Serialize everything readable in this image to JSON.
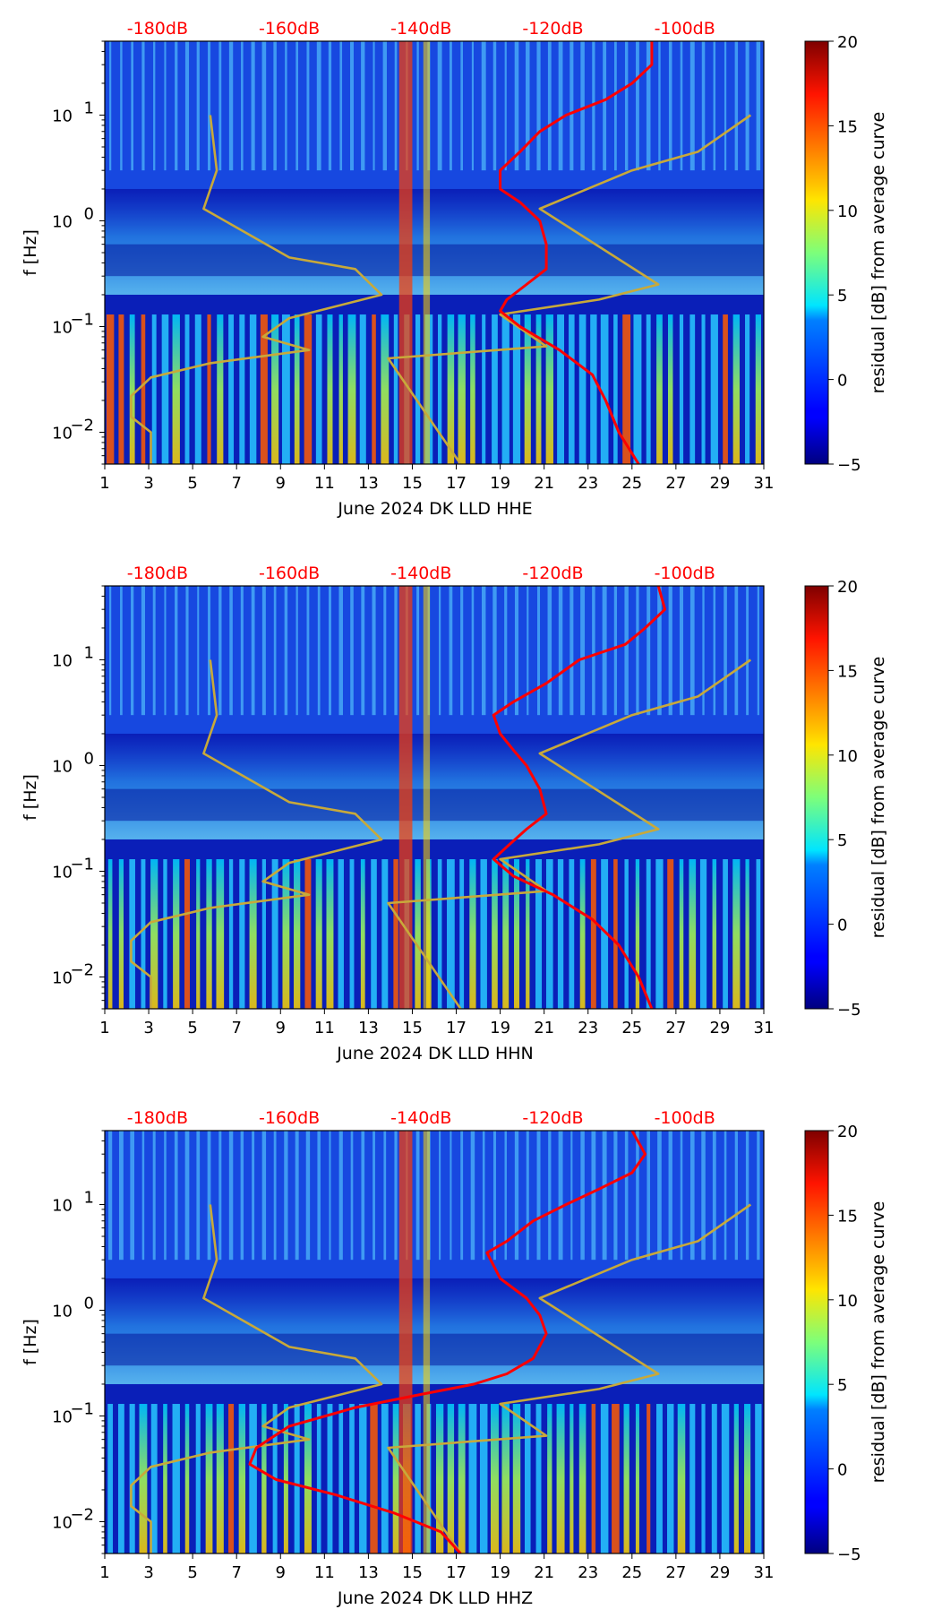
{
  "chart_data": [
    {
      "type": "heatmap",
      "xlabel": "June 2024 DK LLD  HHE",
      "ylabel": "f [Hz]",
      "x_ticks": [
        "1",
        "3",
        "5",
        "7",
        "9",
        "11",
        "13",
        "15",
        "17",
        "19",
        "21",
        "23",
        "25",
        "27",
        "29",
        "31"
      ],
      "y_ticks": [
        {
          "label_base": "10",
          "label_exp": "−2",
          "value": 0.01
        },
        {
          "label_base": "10",
          "label_exp": "−1",
          "value": 0.1
        },
        {
          "label_base": "10",
          "label_exp": "0",
          "value": 1
        },
        {
          "label_base": "10",
          "label_exp": "1",
          "value": 10
        }
      ],
      "xlim": [
        1,
        31
      ],
      "ylim": [
        0.005,
        50
      ],
      "db_scale_labels": [
        {
          "label": "-180dB",
          "db": -180
        },
        {
          "label": "-160dB",
          "db": -160
        },
        {
          "label": "-140dB",
          "db": -140
        },
        {
          "label": "-120dB",
          "db": -120
        },
        {
          "label": "-100dB",
          "db": -100
        }
      ],
      "db_range": [
        -188,
        -88
      ],
      "colorbar": {
        "label": "residual [dB] from average curve",
        "ticks": [
          "−5",
          "0",
          "5",
          "10",
          "15",
          "20"
        ],
        "tick_values": [
          -5,
          0,
          5,
          10,
          15,
          20
        ],
        "range": [
          -5,
          20
        ]
      },
      "series": [
        {
          "name": "model-curve",
          "color": "#c8a93a",
          "points": [
            [
              -172,
              10
            ],
            [
              -171,
              3
            ],
            [
              -173,
              1.3
            ],
            [
              -160,
              0.45
            ],
            [
              -150,
              0.35
            ],
            [
              -146,
              0.2
            ],
            [
              -160,
              0.12
            ],
            [
              -164,
              0.08
            ],
            [
              -157,
              0.06
            ],
            [
              -172,
              0.045
            ],
            [
              -181,
              0.033
            ],
            [
              -184,
              0.022
            ],
            [
              -184,
              0.014
            ],
            [
              -181,
              0.01
            ],
            [
              -181,
              0.005
            ]
          ]
        },
        {
          "name": "model-curve-2",
          "color": "#c8a93a",
          "points": [
            [
              -90,
              10
            ],
            [
              -98,
              4.5
            ],
            [
              -108,
              3.0
            ],
            [
              -122,
              1.3
            ],
            [
              -104,
              0.25
            ],
            [
              -113,
              0.18
            ],
            [
              -128,
              0.13
            ],
            [
              -121,
              0.065
            ],
            [
              -145,
              0.05
            ],
            [
              -134,
              0.005
            ]
          ]
        },
        {
          "name": "mean-spectrum",
          "color": "#ff0000",
          "points": [
            [
              -105,
              50
            ],
            [
              -105,
              30
            ],
            [
              -108,
              20
            ],
            [
              -112,
              14
            ],
            [
              -118,
              10
            ],
            [
              -122,
              7
            ],
            [
              -125,
              4.5
            ],
            [
              -128,
              3
            ],
            [
              -128,
              2
            ],
            [
              -125,
              1.5
            ],
            [
              -122,
              1.0
            ],
            [
              -121,
              0.6
            ],
            [
              -121,
              0.35
            ],
            [
              -124,
              0.25
            ],
            [
              -127,
              0.18
            ],
            [
              -128,
              0.14
            ],
            [
              -125,
              0.1
            ],
            [
              -119,
              0.06
            ],
            [
              -114,
              0.035
            ],
            [
              -112,
              0.02
            ],
            [
              -110,
              0.01
            ],
            [
              -107,
              0.005
            ]
          ]
        }
      ]
    },
    {
      "type": "heatmap",
      "xlabel": "June 2024 DK LLD  HHN",
      "ylabel": "f [Hz]",
      "x_ticks": [
        "1",
        "3",
        "5",
        "7",
        "9",
        "11",
        "13",
        "15",
        "17",
        "19",
        "21",
        "23",
        "25",
        "27",
        "29",
        "31"
      ],
      "y_ticks": [
        {
          "label_base": "10",
          "label_exp": "−2",
          "value": 0.01
        },
        {
          "label_base": "10",
          "label_exp": "−1",
          "value": 0.1
        },
        {
          "label_base": "10",
          "label_exp": "0",
          "value": 1
        },
        {
          "label_base": "10",
          "label_exp": "1",
          "value": 10
        }
      ],
      "xlim": [
        1,
        31
      ],
      "ylim": [
        0.005,
        50
      ],
      "db_scale_labels": [
        {
          "label": "-180dB",
          "db": -180
        },
        {
          "label": "-160dB",
          "db": -160
        },
        {
          "label": "-140dB",
          "db": -140
        },
        {
          "label": "-120dB",
          "db": -120
        },
        {
          "label": "-100dB",
          "db": -100
        }
      ],
      "db_range": [
        -188,
        -88
      ],
      "colorbar": {
        "label": "residual [dB] from average curve",
        "ticks": [
          "−5",
          "0",
          "5",
          "10",
          "15",
          "20"
        ],
        "tick_values": [
          -5,
          0,
          5,
          10,
          15,
          20
        ],
        "range": [
          -5,
          20
        ]
      },
      "series": [
        {
          "name": "model-curve",
          "color": "#c8a93a",
          "points": [
            [
              -172,
              10
            ],
            [
              -171,
              3
            ],
            [
              -173,
              1.3
            ],
            [
              -160,
              0.45
            ],
            [
              -150,
              0.35
            ],
            [
              -146,
              0.2
            ],
            [
              -160,
              0.12
            ],
            [
              -164,
              0.08
            ],
            [
              -157,
              0.06
            ],
            [
              -172,
              0.045
            ],
            [
              -181,
              0.033
            ],
            [
              -184,
              0.022
            ],
            [
              -184,
              0.014
            ],
            [
              -181,
              0.01
            ],
            [
              -181,
              0.005
            ]
          ]
        },
        {
          "name": "model-curve-2",
          "color": "#c8a93a",
          "points": [
            [
              -90,
              10
            ],
            [
              -98,
              4.5
            ],
            [
              -108,
              3.0
            ],
            [
              -122,
              1.3
            ],
            [
              -104,
              0.25
            ],
            [
              -113,
              0.18
            ],
            [
              -128,
              0.13
            ],
            [
              -121,
              0.065
            ],
            [
              -145,
              0.05
            ],
            [
              -134,
              0.005
            ]
          ]
        },
        {
          "name": "mean-spectrum",
          "color": "#ff0000",
          "points": [
            [
              -104,
              50
            ],
            [
              -103,
              30
            ],
            [
              -106,
              20
            ],
            [
              -109,
              14
            ],
            [
              -116,
              10
            ],
            [
              -121,
              6
            ],
            [
              -126,
              4
            ],
            [
              -129,
              3
            ],
            [
              -128,
              2
            ],
            [
              -126,
              1.4
            ],
            [
              -124,
              1.0
            ],
            [
              -122,
              0.6
            ],
            [
              -121,
              0.35
            ],
            [
              -124,
              0.25
            ],
            [
              -127,
              0.17
            ],
            [
              -129,
              0.13
            ],
            [
              -126,
              0.09
            ],
            [
              -120,
              0.06
            ],
            [
              -114,
              0.035
            ],
            [
              -110,
              0.02
            ],
            [
              -107,
              0.01
            ],
            [
              -105,
              0.005
            ]
          ]
        }
      ]
    },
    {
      "type": "heatmap",
      "xlabel": "June 2024 DK LLD  HHZ",
      "ylabel": "f [Hz]",
      "x_ticks": [
        "1",
        "3",
        "5",
        "7",
        "9",
        "11",
        "13",
        "15",
        "17",
        "19",
        "21",
        "23",
        "25",
        "27",
        "29",
        "31"
      ],
      "y_ticks": [
        {
          "label_base": "10",
          "label_exp": "−2",
          "value": 0.01
        },
        {
          "label_base": "10",
          "label_exp": "−1",
          "value": 0.1
        },
        {
          "label_base": "10",
          "label_exp": "0",
          "value": 1
        },
        {
          "label_base": "10",
          "label_exp": "1",
          "value": 10
        }
      ],
      "xlim": [
        1,
        31
      ],
      "ylim": [
        0.005,
        50
      ],
      "db_scale_labels": [
        {
          "label": "-180dB",
          "db": -180
        },
        {
          "label": "-160dB",
          "db": -160
        },
        {
          "label": "-140dB",
          "db": -140
        },
        {
          "label": "-120dB",
          "db": -120
        },
        {
          "label": "-100dB",
          "db": -100
        }
      ],
      "db_range": [
        -188,
        -88
      ],
      "colorbar": {
        "label": "residual [dB] from average curve",
        "ticks": [
          "−5",
          "0",
          "5",
          "10",
          "15",
          "20"
        ],
        "tick_values": [
          -5,
          0,
          5,
          10,
          15,
          20
        ],
        "range": [
          -5,
          20
        ]
      },
      "series": [
        {
          "name": "model-curve",
          "color": "#c8a93a",
          "points": [
            [
              -172,
              10
            ],
            [
              -171,
              3
            ],
            [
              -173,
              1.3
            ],
            [
              -160,
              0.45
            ],
            [
              -150,
              0.35
            ],
            [
              -146,
              0.2
            ],
            [
              -160,
              0.12
            ],
            [
              -164,
              0.08
            ],
            [
              -157,
              0.06
            ],
            [
              -172,
              0.045
            ],
            [
              -181,
              0.033
            ],
            [
              -184,
              0.022
            ],
            [
              -184,
              0.014
            ],
            [
              -181,
              0.01
            ],
            [
              -181,
              0.005
            ]
          ]
        },
        {
          "name": "model-curve-2",
          "color": "#c8a93a",
          "points": [
            [
              -90,
              10
            ],
            [
              -98,
              4.5
            ],
            [
              -108,
              3.0
            ],
            [
              -122,
              1.3
            ],
            [
              -104,
              0.25
            ],
            [
              -113,
              0.18
            ],
            [
              -128,
              0.13
            ],
            [
              -121,
              0.065
            ],
            [
              -145,
              0.05
            ],
            [
              -134,
              0.005
            ]
          ]
        },
        {
          "name": "mean-spectrum",
          "color": "#ff0000",
          "points": [
            [
              -108,
              50
            ],
            [
              -106,
              30
            ],
            [
              -108,
              20
            ],
            [
              -113,
              14
            ],
            [
              -118,
              10
            ],
            [
              -123,
              7
            ],
            [
              -127,
              4.5
            ],
            [
              -130,
              3.5
            ],
            [
              -128,
              2
            ],
            [
              -124,
              1.3
            ],
            [
              -122,
              0.9
            ],
            [
              -121,
              0.6
            ],
            [
              -123,
              0.35
            ],
            [
              -127,
              0.25
            ],
            [
              -132,
              0.2
            ],
            [
              -140,
              0.16
            ],
            [
              -150,
              0.12
            ],
            [
              -160,
              0.08
            ],
            [
              -165,
              0.05
            ],
            [
              -166,
              0.035
            ],
            [
              -162,
              0.025
            ],
            [
              -153,
              0.018
            ],
            [
              -144,
              0.012
            ],
            [
              -137,
              0.008
            ],
            [
              -134,
              0.005
            ]
          ]
        }
      ]
    }
  ]
}
